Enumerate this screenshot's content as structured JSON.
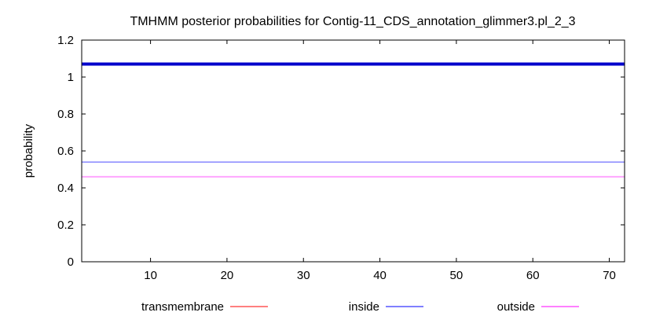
{
  "chart_data": {
    "type": "line",
    "title": "TMHMM posterior probabilities for Contig-11_CDS_annotation_glimmer3.pl_2_3",
    "xlabel": "",
    "ylabel": "probability",
    "xlim": [
      1,
      72
    ],
    "ylim": [
      0,
      1.2
    ],
    "x_ticks": [
      10,
      20,
      30,
      40,
      50,
      60,
      70
    ],
    "y_ticks": [
      0,
      0.2,
      0.4,
      0.6,
      0.8,
      1,
      1.2
    ],
    "grid": false,
    "legend_position": "bottom",
    "series": [
      {
        "name": "transmembrane",
        "color": "#ff0000",
        "x": [
          1,
          72
        ],
        "y": [
          0,
          0
        ]
      },
      {
        "name": "inside",
        "color": "#0000ff",
        "x": [
          1,
          72
        ],
        "y": [
          0.54,
          0.54
        ]
      },
      {
        "name": "outside",
        "color": "#ff00ff",
        "x": [
          1,
          72
        ],
        "y": [
          0.46,
          0.46
        ]
      }
    ],
    "bands": [
      {
        "color": "#0000cc",
        "x": [
          1,
          72
        ],
        "y": 1.07
      }
    ]
  }
}
